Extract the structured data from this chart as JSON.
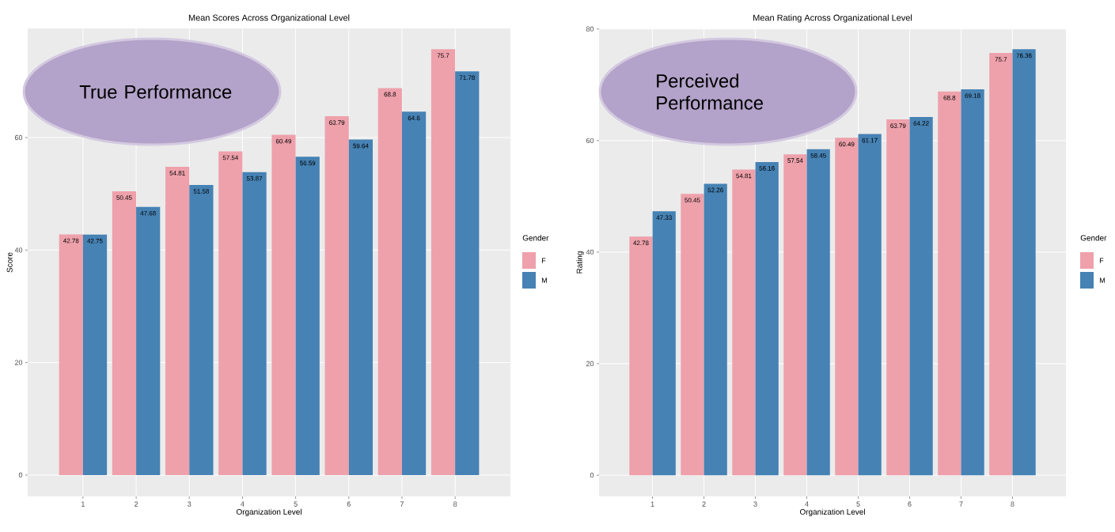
{
  "chart_data": [
    {
      "type": "bar",
      "title": "Mean Scores Across Organizational Level",
      "xlabel": "Organization Level",
      "ylabel": "Score",
      "legend_title": "Gender",
      "categories": [
        "1",
        "2",
        "3",
        "4",
        "5",
        "6",
        "7",
        "8"
      ],
      "series": [
        {
          "name": "F",
          "color": "#eea1ab",
          "values": [
            42.78,
            50.45,
            54.81,
            57.54,
            60.49,
            63.79,
            68.8,
            75.7
          ]
        },
        {
          "name": "M",
          "color": "#4682b4",
          "values": [
            42.75,
            47.68,
            51.58,
            53.87,
            56.59,
            59.64,
            64.6,
            71.78
          ]
        }
      ],
      "ylim": [
        -3.8,
        79.4
      ],
      "yticks": [
        0,
        20,
        40,
        60
      ],
      "grid": true,
      "legend": "right",
      "data_labels": true,
      "annotations": [
        "True Performance"
      ]
    },
    {
      "type": "bar",
      "title": "Mean Rating Across Organizational Level",
      "xlabel": "Organization Level",
      "ylabel": "Rating",
      "legend_title": "Gender",
      "categories": [
        "1",
        "2",
        "3",
        "4",
        "5",
        "6",
        "7",
        "8"
      ],
      "series": [
        {
          "name": "F",
          "color": "#eea1ab",
          "values": [
            42.78,
            50.45,
            54.81,
            57.54,
            60.49,
            63.79,
            68.8,
            75.7
          ]
        },
        {
          "name": "M",
          "color": "#4682b4",
          "values": [
            47.33,
            52.26,
            56.16,
            58.45,
            61.17,
            64.22,
            69.18,
            76.36
          ]
        }
      ],
      "ylim": [
        -3.8,
        80.1
      ],
      "yticks": [
        0,
        20,
        40,
        60,
        80
      ],
      "grid": true,
      "legend": "right",
      "data_labels": true,
      "annotations": [
        "Perceived Performance"
      ]
    }
  ]
}
